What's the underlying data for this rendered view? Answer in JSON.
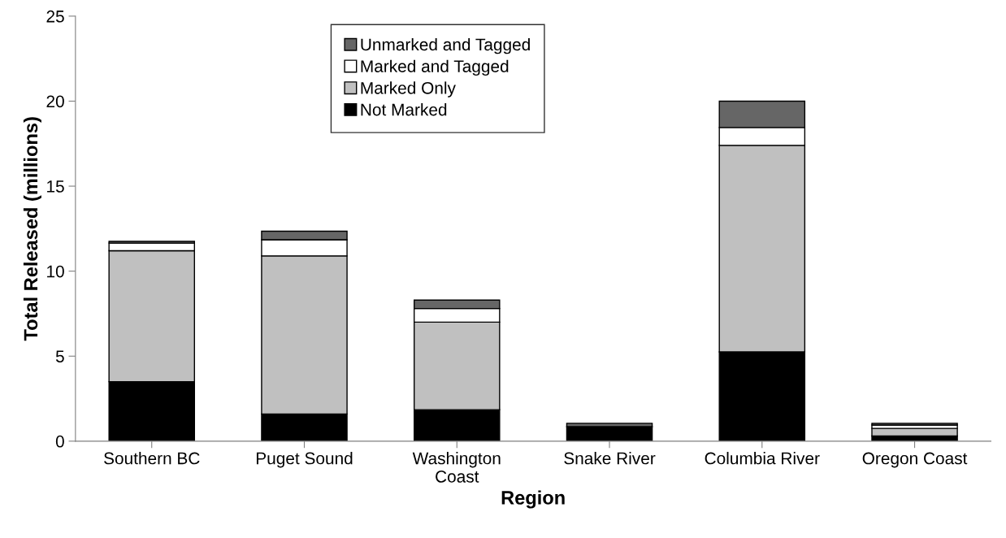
{
  "chart_data": {
    "type": "bar",
    "stacked": true,
    "xlabel": "Region",
    "ylabel": "Total Released (millions)",
    "categories": [
      "Southern BC",
      "Puget Sound",
      "Washington\nCoast",
      "Snake River",
      "Columbia River",
      "Oregon Coast"
    ],
    "series": [
      {
        "name": "Not Marked",
        "color": "#000000",
        "values": [
          3.5,
          1.6,
          1.85,
          0.85,
          5.25,
          0.3
        ]
      },
      {
        "name": "Marked Only",
        "color": "#c0c0c0",
        "values": [
          7.7,
          9.3,
          5.15,
          0,
          12.15,
          0.45
        ]
      },
      {
        "name": "Marked and Tagged",
        "color": "#ffffff",
        "values": [
          0.45,
          0.95,
          0.8,
          0,
          1.05,
          0.2
        ]
      },
      {
        "name": "Unmarked and Tagged",
        "color": "#666666",
        "values": [
          0.1,
          0.5,
          0.5,
          0.2,
          1.55,
          0.1
        ]
      }
    ],
    "ylim": [
      0,
      25
    ],
    "yticks": [
      0,
      5,
      10,
      15,
      20,
      25
    ],
    "grid": false,
    "legend": "top"
  }
}
